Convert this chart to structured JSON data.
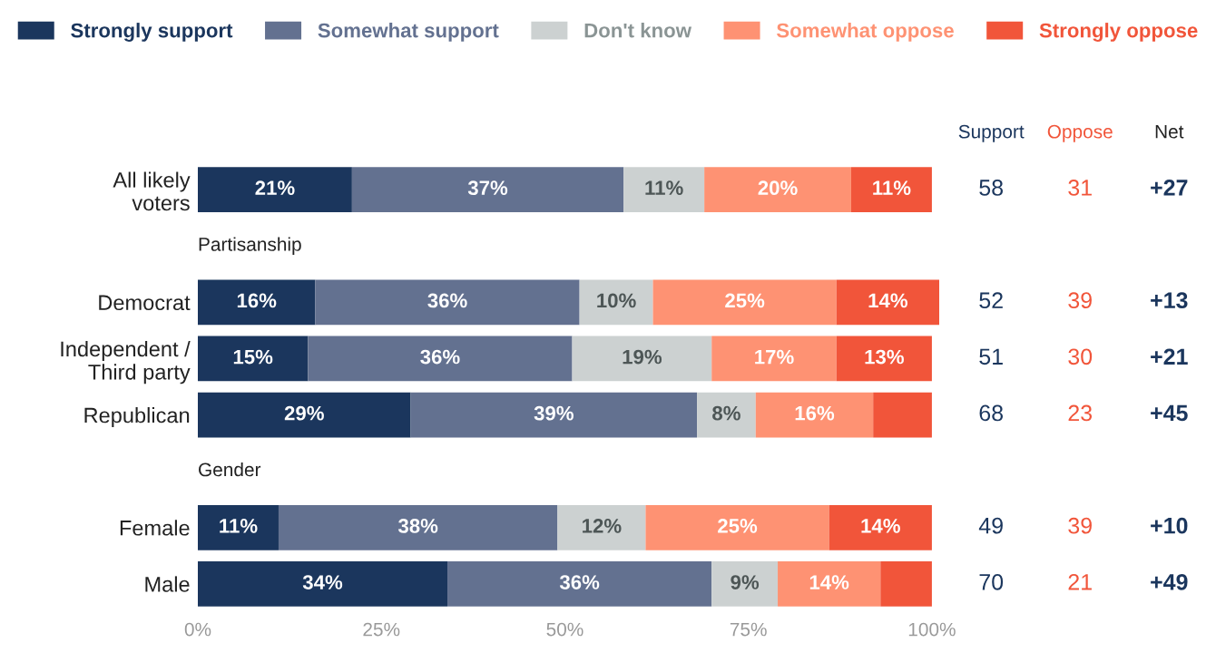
{
  "chart_data": {
    "type": "bar",
    "orientation": "horizontal",
    "stacked": true,
    "legend": "top",
    "categories": [
      "All likely voters",
      null,
      "Democrat",
      "Independent / Third party",
      "Republican",
      null,
      "Female",
      "Male"
    ],
    "series": [
      {
        "name": "Strongly support",
        "color": "#1b365d",
        "values": [
          21,
          null,
          16,
          15,
          29,
          null,
          11,
          34
        ],
        "value_labels": [
          "21%",
          null,
          "16%",
          "15%",
          "29%",
          null,
          "11%",
          "34%"
        ]
      },
      {
        "name": "Somewhat support",
        "color": "#637190",
        "values": [
          37,
          null,
          36,
          36,
          39,
          null,
          38,
          36
        ],
        "value_labels": [
          "37%",
          null,
          "36%",
          "36%",
          "39%",
          null,
          "38%",
          "36%"
        ]
      },
      {
        "name": "Don't know",
        "color": "#ccd1d1",
        "values": [
          11,
          null,
          10,
          19,
          8,
          null,
          12,
          9
        ],
        "value_labels": [
          "11%",
          null,
          "10%",
          "19%",
          "8%",
          null,
          "12%",
          "9%"
        ]
      },
      {
        "name": "Somewhat oppose",
        "color": "#fe9273",
        "values": [
          20,
          null,
          25,
          17,
          16,
          null,
          25,
          14
        ],
        "value_labels": [
          "20%",
          null,
          "25%",
          "17%",
          "16%",
          null,
          "25%",
          "14%"
        ]
      },
      {
        "name": "Strongly oppose",
        "color": "#f1553a",
        "values": [
          11,
          null,
          14,
          13,
          8,
          null,
          14,
          7
        ],
        "value_labels": [
          "11%",
          null,
          "14%",
          "13%",
          null,
          null,
          "14%",
          null
        ]
      }
    ],
    "xlim": [
      0,
      101
    ],
    "xticks": [
      {
        "value": 0,
        "label": "0%"
      },
      {
        "value": 25,
        "label": "25%"
      },
      {
        "value": 50,
        "label": "50%"
      },
      {
        "value": 75,
        "label": "75%"
      },
      {
        "value": 100,
        "label": "100%"
      }
    ],
    "grid": false,
    "annotations": [
      "Partisanship",
      "Gender",
      "Support",
      "Oppose",
      "Net",
      "58",
      "31",
      "+27",
      "52",
      "39",
      "+13",
      "51",
      "30",
      "+21",
      "68",
      "23",
      "+45",
      "49",
      "39",
      "+10",
      "70",
      "21",
      "+49"
    ]
  }
}
